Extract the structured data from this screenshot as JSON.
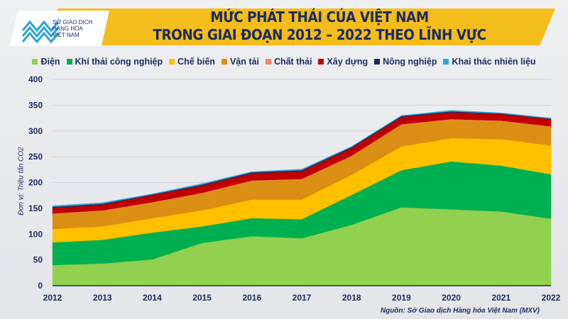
{
  "header": {
    "title_line1": "MỨC PHÁT THẢI CỦA VIỆT NAM",
    "title_line2": "TRONG GIAI ĐOẠN 2012 – 2022 THEO LĨNH VỰC"
  },
  "logo": {
    "line1": "SỞ GIAO DỊCH",
    "line2": "HÀNG HÓA",
    "line3": "VIỆT NAM"
  },
  "source": "Nguồn: Sở Giao dịch Hàng hóa Việt Nam (MXV)",
  "chart_data": {
    "type": "area",
    "stacked": true,
    "title": "MỨC PHÁT THẢI CỦA VIỆT NAM TRONG GIAI ĐOẠN 2012 – 2022 THEO LĨNH VỰC",
    "ylabel": "Đơn vị: Triệu tấn CO2",
    "xlabel": "",
    "ylim": [
      0,
      400
    ],
    "yticks": [
      0,
      50,
      100,
      150,
      200,
      250,
      300,
      350,
      400
    ],
    "grid": true,
    "legend": "top",
    "categories": [
      "2012",
      "2013",
      "2014",
      "2015",
      "2016",
      "2017",
      "2018",
      "2019",
      "2020",
      "2021",
      "2022"
    ],
    "series": [
      {
        "name": "Điện",
        "color": "#92d050",
        "values": [
          40,
          43,
          51,
          83,
          96,
          92,
          118,
          152,
          148,
          144,
          130
        ]
      },
      {
        "name": "Khí thải công nghiệp",
        "color": "#00b050",
        "values": [
          44,
          46,
          52,
          32,
          35,
          37,
          58,
          72,
          93,
          89,
          86
        ]
      },
      {
        "name": "Chế biến",
        "color": "#ffc000",
        "values": [
          26,
          26,
          28,
          31,
          36,
          38,
          39,
          46,
          45,
          51,
          56
        ]
      },
      {
        "name": "Vận tải",
        "color": "#d98f14",
        "values": [
          29,
          30,
          30,
          33,
          36,
          39,
          36,
          42,
          36,
          35,
          36
        ]
      },
      {
        "name": "Chất thải",
        "color": "#f4836b",
        "values": [
          1,
          1,
          1,
          1,
          1,
          1,
          1,
          1,
          1,
          1,
          1
        ]
      },
      {
        "name": "Xây dựng",
        "color": "#c00000",
        "values": [
          11,
          11,
          14,
          14,
          14,
          15,
          15,
          14,
          13,
          13,
          14
        ]
      },
      {
        "name": "Nông nghiệp",
        "color": "#1f2a5c",
        "values": [
          2,
          2,
          1,
          2,
          2,
          2,
          2,
          2,
          2,
          1,
          1
        ]
      },
      {
        "name": "Khai thác nhiên liệu",
        "color": "#2eaadc",
        "values": [
          2,
          2,
          1,
          2,
          1,
          2,
          1,
          1,
          2,
          1,
          1
        ]
      }
    ]
  }
}
